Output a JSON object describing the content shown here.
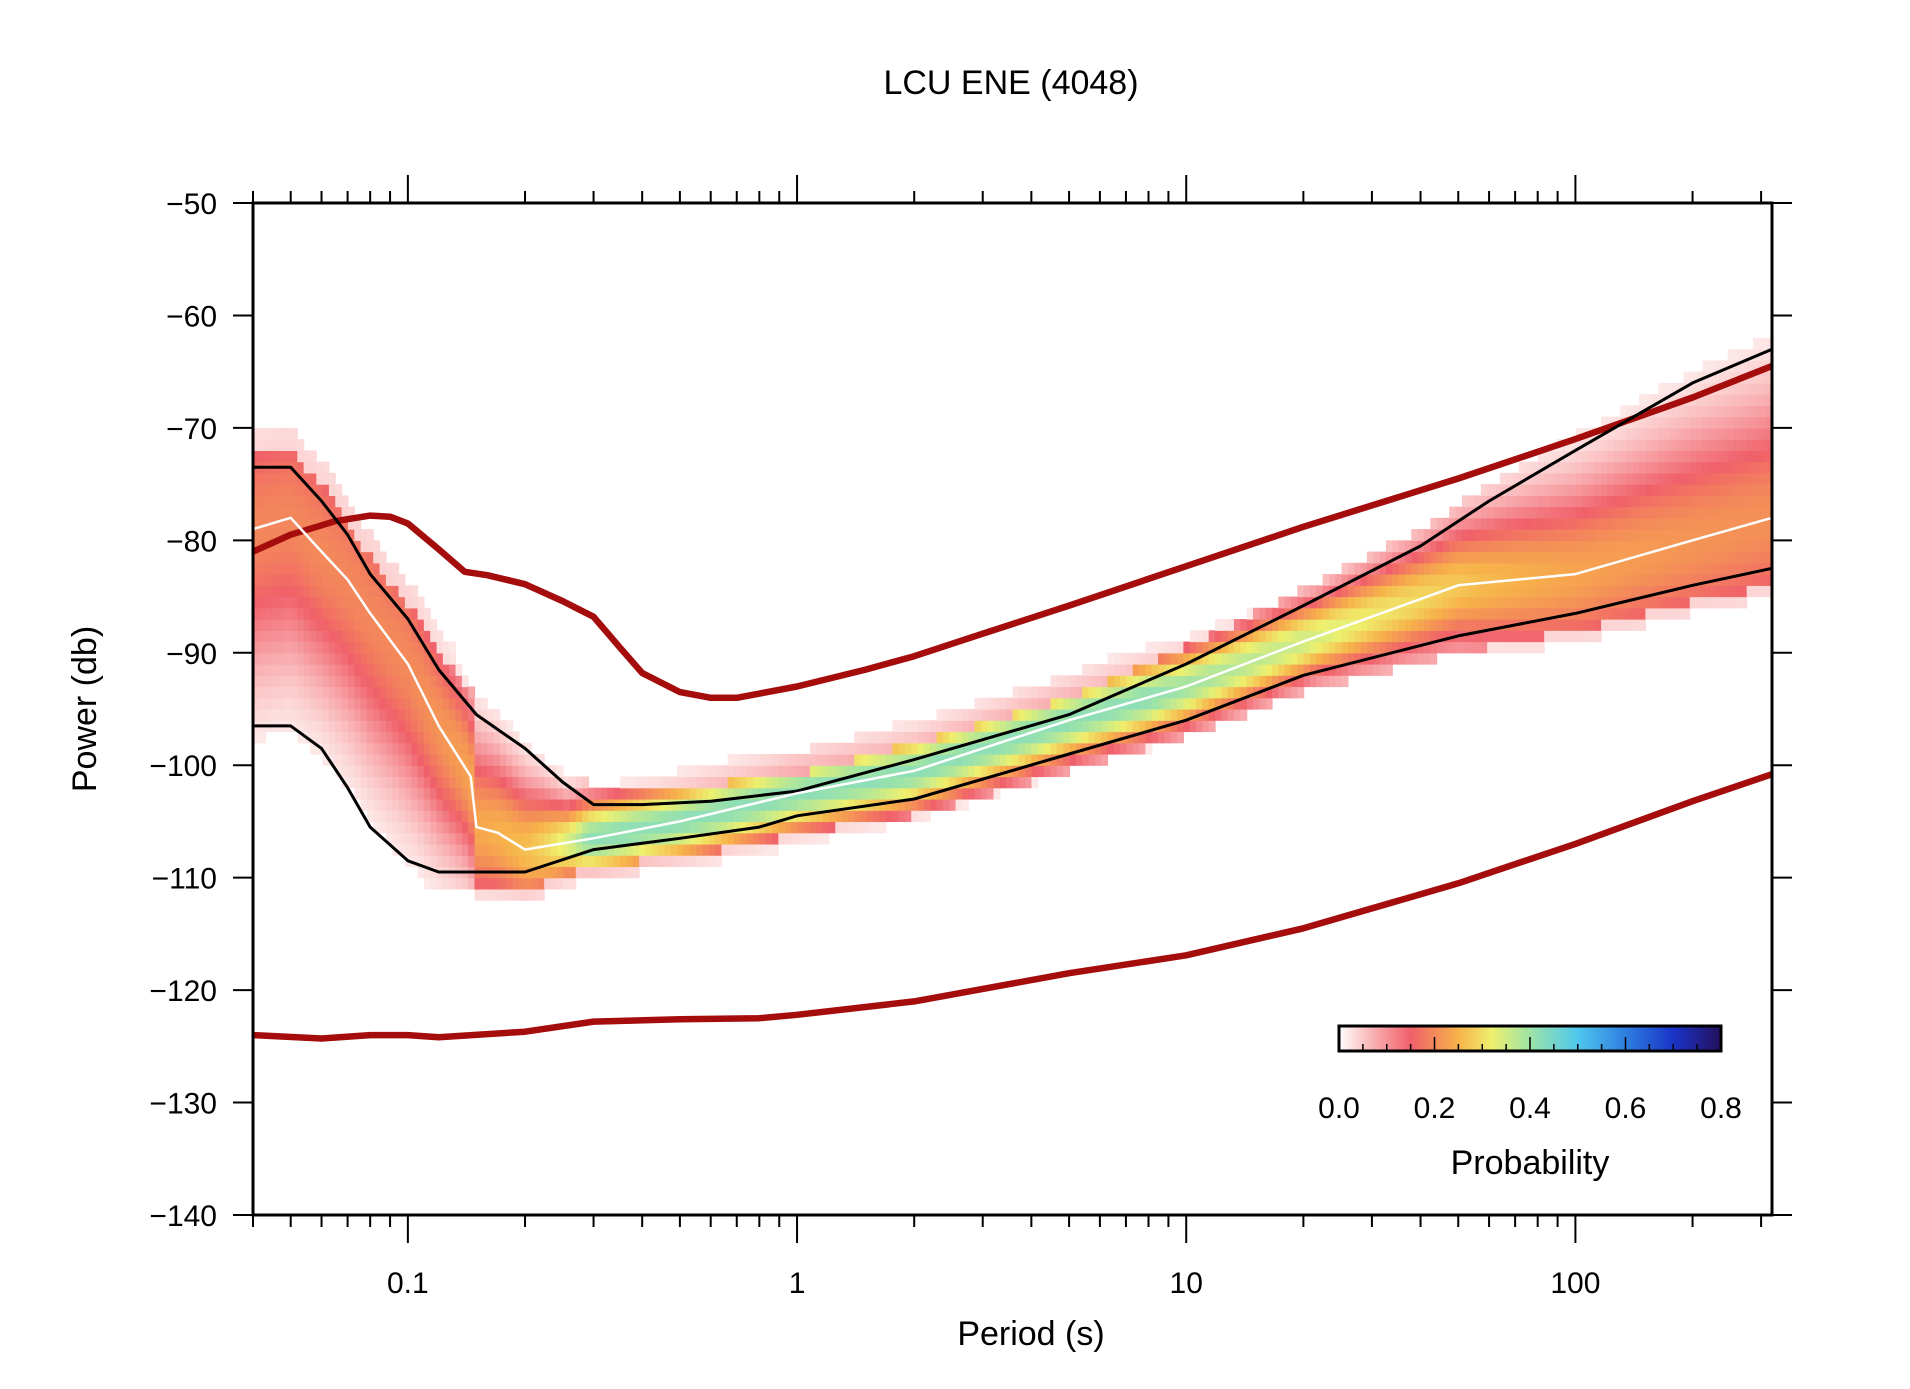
{
  "chart_data": {
    "type": "heatmap",
    "title": "LCU ENE (4048)",
    "xlabel": "Period (s)",
    "ylabel": "Power (db)",
    "x_scale": "log",
    "xlim": [
      0.04,
      320
    ],
    "ylim": [
      -140,
      -50
    ],
    "x_ticks": [
      {
        "value": 0.1,
        "label": "0.1"
      },
      {
        "value": 1,
        "label": "1"
      },
      {
        "value": 10,
        "label": "10"
      },
      {
        "value": 100,
        "label": "100"
      }
    ],
    "y_ticks": [
      {
        "value": -50,
        "label": "−50"
      },
      {
        "value": -60,
        "label": "−60"
      },
      {
        "value": -70,
        "label": "−70"
      },
      {
        "value": -80,
        "label": "−80"
      },
      {
        "value": -90,
        "label": "−90"
      },
      {
        "value": -100,
        "label": "−100"
      },
      {
        "value": -110,
        "label": "−110"
      },
      {
        "value": -120,
        "label": "−120"
      },
      {
        "value": -130,
        "label": "−130"
      },
      {
        "value": -140,
        "label": "−140"
      }
    ],
    "colorbar": {
      "label": "Probability",
      "range": [
        0,
        0.8
      ],
      "ticks": [
        "0.0",
        "0.2",
        "0.4",
        "0.6",
        "0.8"
      ],
      "stops": [
        {
          "v": 0.0,
          "color": "#ffffff"
        },
        {
          "v": 0.05,
          "color": "#fbc7c7"
        },
        {
          "v": 0.15,
          "color": "#f0606a"
        },
        {
          "v": 0.25,
          "color": "#f7b24a"
        },
        {
          "v": 0.32,
          "color": "#eef06e"
        },
        {
          "v": 0.4,
          "color": "#9ee3a8"
        },
        {
          "v": 0.5,
          "color": "#4fc8ee"
        },
        {
          "v": 0.6,
          "color": "#2f7ee0"
        },
        {
          "v": 0.7,
          "color": "#1a34c8"
        },
        {
          "v": 0.8,
          "color": "#25105e"
        }
      ]
    },
    "series": [
      {
        "role": "noise_model_high",
        "color": "#a50d0d",
        "x": [
          0.04,
          0.05,
          0.065,
          0.08,
          0.09,
          0.1,
          0.12,
          0.14,
          0.16,
          0.2,
          0.25,
          0.3,
          0.35,
          0.4,
          0.5,
          0.6,
          0.7,
          1,
          1.5,
          2,
          3,
          5,
          10,
          20,
          50,
          100,
          200,
          320
        ],
        "y": [
          -81,
          -79.5,
          -78.3,
          -77.8,
          -77.9,
          -78.5,
          -80.8,
          -82.8,
          -83.1,
          -83.9,
          -85.4,
          -86.8,
          -89.5,
          -91.8,
          -93.5,
          -94.0,
          -94.0,
          -93.0,
          -91.5,
          -90.3,
          -88.3,
          -85.8,
          -82.3,
          -78.8,
          -74.5,
          -71.0,
          -67.3,
          -64.5
        ]
      },
      {
        "role": "noise_model_low",
        "color": "#a50d0d",
        "x": [
          0.04,
          0.06,
          0.08,
          0.1,
          0.12,
          0.2,
          0.3,
          0.5,
          0.8,
          1,
          2,
          5,
          10,
          20,
          50,
          100,
          200,
          320
        ],
        "y": [
          -124.0,
          -124.3,
          -124.0,
          -124.0,
          -124.2,
          -123.7,
          -122.8,
          -122.6,
          -122.5,
          -122.2,
          -121.0,
          -118.5,
          -116.9,
          -114.5,
          -110.5,
          -107.0,
          -103.2,
          -100.8
        ]
      },
      {
        "role": "percentile_high",
        "color": "#000000",
        "x": [
          0.04,
          0.05,
          0.06,
          0.07,
          0.08,
          0.1,
          0.12,
          0.15,
          0.2,
          0.25,
          0.3,
          0.4,
          0.6,
          1,
          2,
          5,
          10,
          20,
          40,
          60,
          100,
          200,
          320
        ],
        "y": [
          -73.5,
          -73.5,
          -76.5,
          -79.5,
          -83,
          -87,
          -91.5,
          -95.5,
          -98.5,
          -101.5,
          -103.5,
          -103.5,
          -103.2,
          -102.3,
          -99.5,
          -95.5,
          -91.0,
          -85.8,
          -80.5,
          -76.5,
          -72.0,
          -66.0,
          -63.0
        ]
      },
      {
        "role": "percentile_low",
        "color": "#000000",
        "x": [
          0.04,
          0.05,
          0.06,
          0.07,
          0.08,
          0.1,
          0.12,
          0.15,
          0.2,
          0.3,
          0.5,
          0.8,
          1,
          2,
          5,
          10,
          20,
          50,
          100,
          200,
          320
        ],
        "y": [
          -96.5,
          -96.5,
          -98.5,
          -102,
          -105.5,
          -108.5,
          -109.5,
          -109.5,
          -109.5,
          -107.5,
          -106.5,
          -105.5,
          -104.5,
          -103.0,
          -99.0,
          -96.0,
          -92.0,
          -88.5,
          -86.5,
          -84.0,
          -82.5
        ]
      },
      {
        "role": "mode",
        "color": "#ffffff",
        "x": [
          0.04,
          0.05,
          0.06,
          0.07,
          0.08,
          0.1,
          0.12,
          0.145,
          0.15,
          0.17,
          0.2,
          0.3,
          0.5,
          1,
          2,
          5,
          10,
          20,
          50,
          100,
          200,
          320
        ],
        "y": [
          -79.0,
          -78.0,
          -81.0,
          -83.5,
          -86.5,
          -91.0,
          -96.5,
          -101.0,
          -105.5,
          -106.0,
          -107.5,
          -106.5,
          -105.0,
          -102.5,
          -100.5,
          -96.0,
          -93.0,
          -89.0,
          -84.0,
          -83.0,
          -80.0,
          -78.0
        ]
      }
    ]
  }
}
